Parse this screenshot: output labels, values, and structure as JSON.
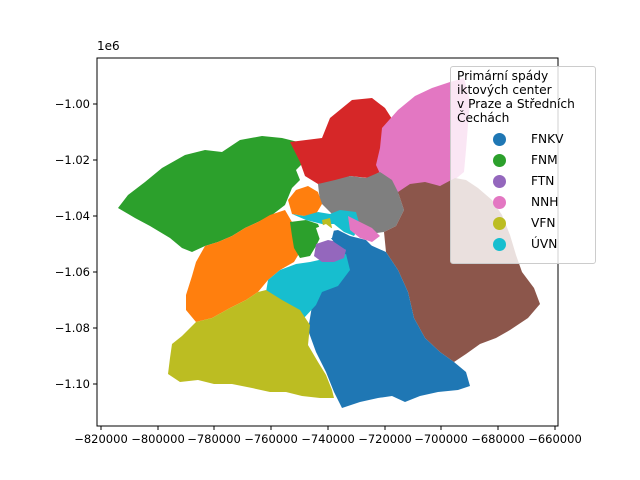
{
  "map": {
    "offset_label": "1e6",
    "x_ticks": [
      "−820000",
      "−800000",
      "−780000",
      "−760000",
      "−740000",
      "−720000",
      "−700000",
      "−680000",
      "−660000"
    ],
    "y_ticks": [
      "−1.00",
      "−1.02",
      "−1.04",
      "−1.06",
      "−1.08",
      "−1.10"
    ]
  },
  "legend": {
    "title": "Primární spády\niktových center\nv Praze a Středních\nČechách",
    "items": [
      {
        "label": "FNKV",
        "color": "#1f77b4"
      },
      {
        "label": "FNM",
        "color": "#2ca02c"
      },
      {
        "label": "FTN",
        "color": "#9467bd"
      },
      {
        "label": "NNH",
        "color": "#e377c2"
      },
      {
        "label": "VFN",
        "color": "#bcbd22"
      },
      {
        "label": "ÚVN",
        "color": "#17becf"
      }
    ]
  },
  "colors": {
    "fnkv": "#1f77b4",
    "fnm": "#2ca02c",
    "ftn": "#9467bd",
    "nnh": "#e377c2",
    "vfn": "#bcbd22",
    "uvn": "#17becf",
    "orange": "#ff7f0e",
    "red": "#d62728",
    "gray": "#7f7f7f",
    "brown": "#8c564b"
  }
}
